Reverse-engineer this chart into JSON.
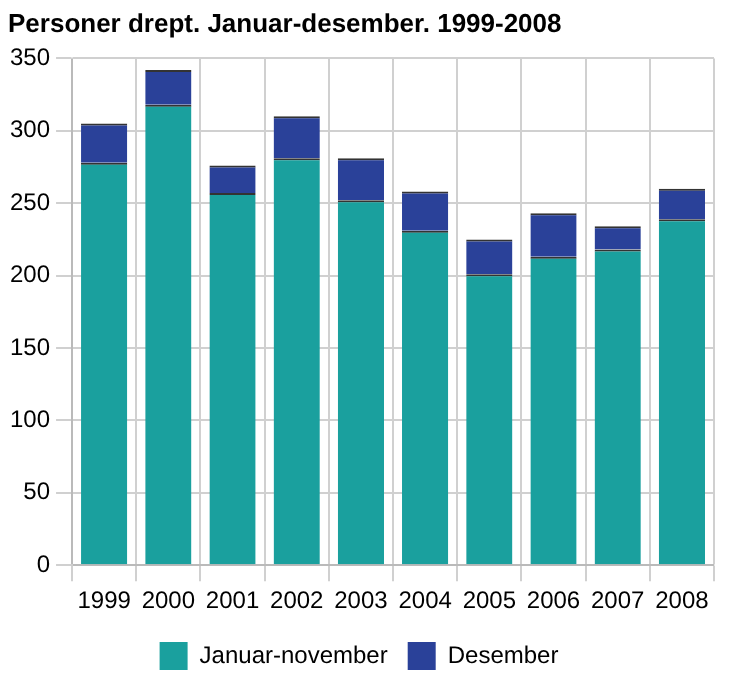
{
  "chart_data": {
    "type": "bar",
    "title": "Personer drept. Januar-desember. 1999-2008",
    "stacked": true,
    "categories": [
      "1999",
      "2000",
      "2001",
      "2002",
      "2003",
      "2004",
      "2005",
      "2006",
      "2007",
      "2008"
    ],
    "series": [
      {
        "name": "Januar-november",
        "color": "#1aa09e",
        "values": [
          278,
          318,
          257,
          281,
          252,
          231,
          201,
          213,
          218,
          239
        ]
      },
      {
        "name": "Desember",
        "color": "#2a4199",
        "values": [
          27,
          24,
          19,
          29,
          29,
          27,
          24,
          30,
          16,
          21
        ]
      }
    ],
    "ylim": [
      0,
      350
    ],
    "yticks": [
      0,
      50,
      100,
      150,
      200,
      250,
      300,
      350
    ],
    "grid": true,
    "legend": "bottom"
  }
}
